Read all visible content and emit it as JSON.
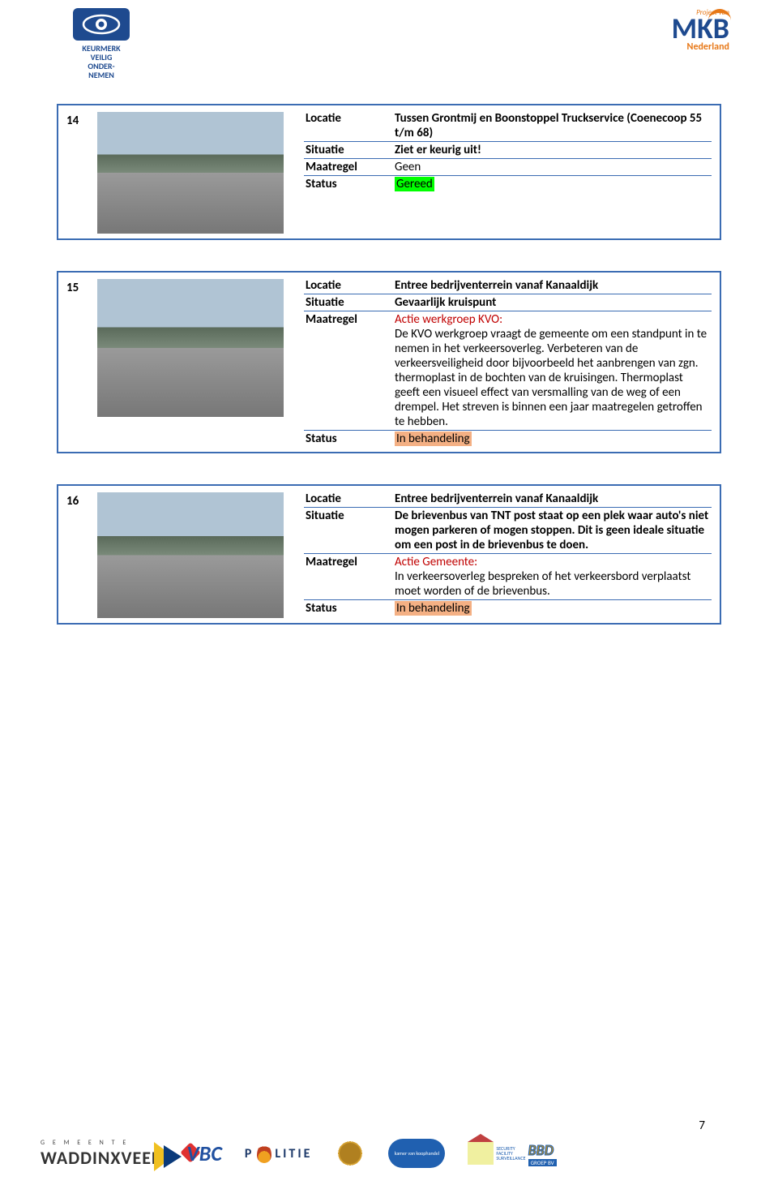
{
  "header": {
    "left_logo_lines": [
      "KEURMERK",
      "VEILIG",
      "ONDER-",
      "NEMEN"
    ],
    "right_logo_top": "Project van",
    "right_logo_main": "MKB",
    "right_logo_sub": "Nederland"
  },
  "entries": [
    {
      "num": "14",
      "photo_h": "150",
      "rows": [
        {
          "key": "Locatie",
          "val": "Tussen Grontmij en Boonstoppel Truckservice (Coenecoop 55 t/m 68)",
          "bold": true
        },
        {
          "key": "Situatie",
          "val": "Ziet er keurig uit!",
          "bold": true
        },
        {
          "key": "Maatregel",
          "val": "Geen"
        },
        {
          "key": "Status",
          "val": "Gereed",
          "highlight": "green"
        }
      ]
    },
    {
      "num": "15",
      "photo_h": "170",
      "rows": [
        {
          "key": "Locatie",
          "val": "Entree bedrijventerrein vanaf Kanaaldijk",
          "bold": true
        },
        {
          "key": "Situatie",
          "val": "Gevaarlijk kruispunt",
          "bold": true
        },
        {
          "key": "Maatregel",
          "val_parts": [
            {
              "t": "Actie werkgroep KVO:",
              "red": true
            },
            {
              "t": "De KVO werkgroep vraagt de gemeente om een standpunt in te nemen in het verkeersoverleg. Verbeteren van de verkeersveiligheid door bijvoorbeeld het aanbrengen van zgn. thermoplast in de bochten van de kruisingen.  Thermoplast geeft een visueel effect van versmalling van de weg of een drempel. Het streven is binnen een jaar maatregelen getroffen te hebben."
            }
          ]
        },
        {
          "key": "Status",
          "val": "In behandeling",
          "highlight": "orange"
        }
      ]
    },
    {
      "num": "16",
      "photo_h": "155",
      "rows": [
        {
          "key": "Locatie",
          "val": "Entree bedrijventerrein vanaf Kanaaldijk",
          "bold": true
        },
        {
          "key": "Situatie",
          "val": "De brievenbus van TNT post staat op een plek waar auto's niet mogen parkeren of mogen stoppen. Dit is geen ideale situatie om een post in de brievenbus te doen.",
          "bold": true
        },
        {
          "key": "Maatregel",
          "val_parts": [
            {
              "t": "Actie Gemeente:",
              "red": true
            },
            {
              "t": "In verkeersoverleg bespreken of het verkeersbord verplaatst moet worden of de brievenbus."
            }
          ]
        },
        {
          "key": "Status",
          "val": "In behandeling",
          "highlight": "orange"
        }
      ]
    }
  ],
  "footer": {
    "page_num": "7",
    "wadd_top": "G E M E E N T E",
    "wadd_main": "WADDINXVEEN",
    "vbc": "VBC",
    "politie": "P  LITIE",
    "kvk": "kamer van koophandel",
    "bbd_labels": "SECURITY\nFACILITY\nSURVEILLANCE",
    "bbd": "BBD",
    "groep": "GROEP BV"
  },
  "colors": {
    "border": "#3b6cb3",
    "green_hl": "#00ff00",
    "orange_hl": "#f4b084",
    "red_text": "#c00000",
    "dark_blue": "#1e4a8f",
    "orange": "#e77817"
  }
}
